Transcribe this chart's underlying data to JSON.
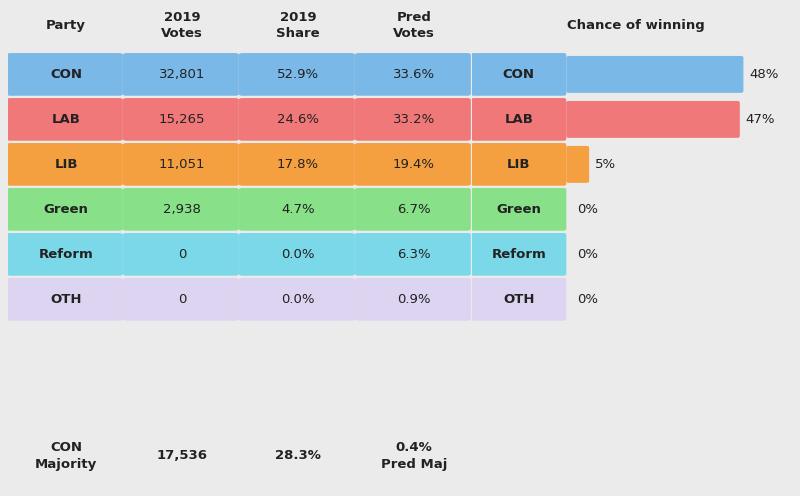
{
  "bg_color": "#ebebeb",
  "parties": [
    "CON",
    "LAB",
    "LIB",
    "Green",
    "Reform",
    "OTH"
  ],
  "votes_2019": [
    "32,801",
    "15,265",
    "11,051",
    "2,938",
    "0",
    "0"
  ],
  "share_2019": [
    "52.9%",
    "24.6%",
    "17.8%",
    "4.7%",
    "0.0%",
    "0.0%"
  ],
  "pred_votes": [
    "33.6%",
    "33.2%",
    "19.4%",
    "6.7%",
    "6.3%",
    "0.9%"
  ],
  "party_colors": [
    "#7ab8e8",
    "#f07878",
    "#f5a040",
    "#88e088",
    "#7ad8e8",
    "#dcd4f0"
  ],
  "majority_label": "CON\nMajority",
  "majority_votes": "17,536",
  "majority_share": "28.3%",
  "majority_pred": "0.4%\nPred Maj",
  "chance_parties": [
    "CON",
    "LAB",
    "LIB",
    "Green",
    "Reform",
    "OTH"
  ],
  "chance_values": [
    48,
    47,
    5,
    0,
    0,
    0
  ],
  "chance_colors": [
    "#7ab8e8",
    "#f07878",
    "#f5a040",
    "#88e088",
    "#7ad8e8",
    "#dcd4f0"
  ],
  "chance_max": 48,
  "col_headers": [
    "Party",
    "2019\nVotes",
    "2019\nShare",
    "Pred\nVotes"
  ],
  "chance_header": "Chance of winning"
}
